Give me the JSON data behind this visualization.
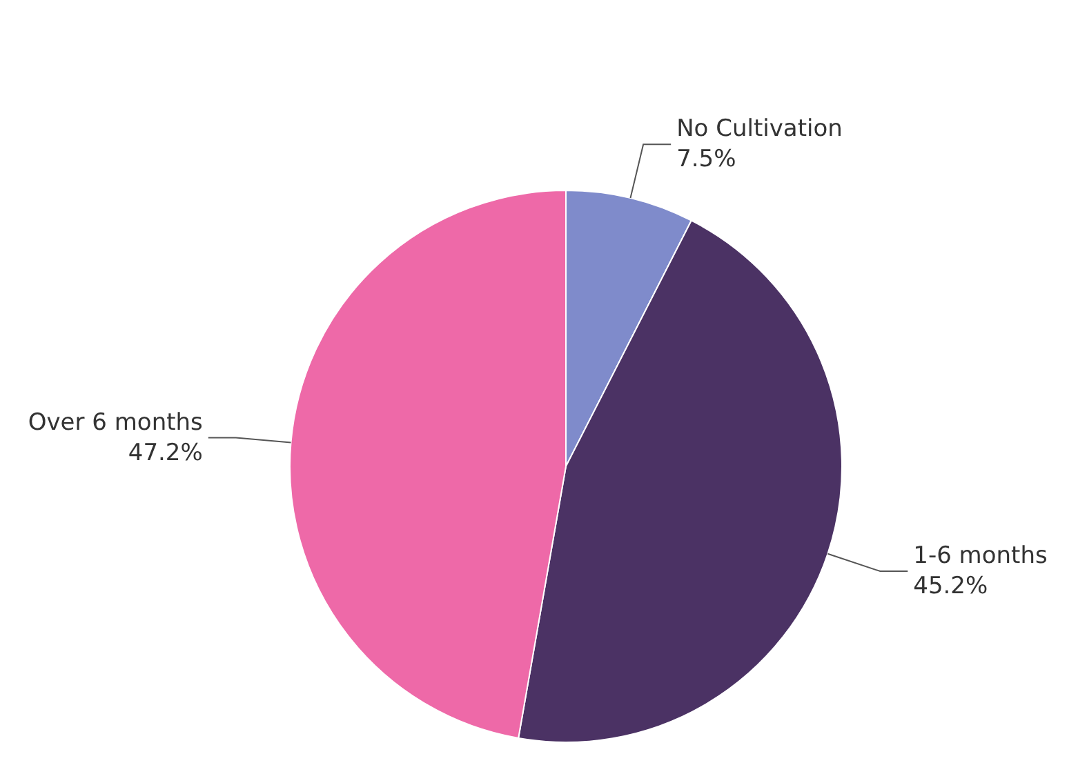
{
  "chart_data": {
    "type": "pie",
    "categories": [
      "No Cultivation",
      "1-6 months",
      "Over 6 months"
    ],
    "values": [
      7.5,
      45.2,
      47.2
    ],
    "colors": [
      "#7f8bcb",
      "#4b3264",
      "#ee69a8"
    ],
    "value_labels": [
      "7.5%",
      "45.2%",
      "47.2%"
    ]
  }
}
